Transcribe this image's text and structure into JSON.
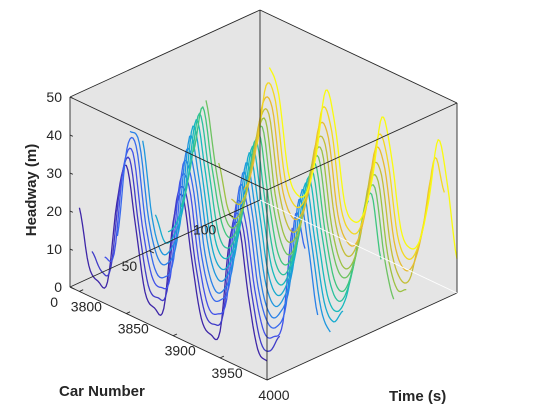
{
  "chart_data": {
    "type": "line",
    "projection": "3d",
    "title": "",
    "xlabel": "Time (s)",
    "ylabel": "Car Number",
    "zlabel": "Headway (m)",
    "xlim": [
      3790,
      4000
    ],
    "ylim": [
      0,
      120
    ],
    "zlim": [
      0,
      50
    ],
    "x_ticks": [
      3800,
      3850,
      3900,
      3950,
      4000
    ],
    "y_ticks": [
      0,
      50,
      100
    ],
    "z_ticks": [
      0,
      10,
      20,
      30,
      40,
      50
    ],
    "x_tick_labels": [
      "3800",
      "3850",
      "3900",
      "3950",
      "4000"
    ],
    "y_tick_labels": [
      "0",
      "50",
      "100"
    ],
    "z_tick_labels": [
      "0",
      "10",
      "20",
      "30",
      "40",
      "50"
    ],
    "grid": false,
    "background": "#e5e5e5",
    "colormap": "parula (car 0 = dark blue, car 120 = yellow)",
    "car_numbers": [
      0,
      8,
      16,
      24,
      32,
      40,
      48,
      56,
      64,
      72,
      80,
      88,
      96,
      104,
      112,
      120
    ],
    "time_s": [
      3800,
      3810,
      3820,
      3830,
      3840,
      3850,
      3860,
      3870,
      3880,
      3890,
      3900,
      3910,
      3920,
      3930,
      3940,
      3950,
      3960,
      3970,
      3980,
      3990,
      4000
    ],
    "wave_period_s": 40,
    "headway_min_m": 4,
    "headway_peak_m": 40,
    "series": [
      {
        "car": 0,
        "headway_m": [
          22,
          8,
          5,
          6,
          28,
          39,
          24,
          8,
          5,
          6,
          30,
          38,
          22,
          8,
          5,
          7,
          32,
          37,
          20,
          7,
          5
        ]
      },
      {
        "car": 8,
        "headway_m": [
          9,
          5,
          7,
          30,
          38,
          21,
          7,
          5,
          8,
          33,
          36,
          19,
          7,
          5,
          9,
          34,
          35,
          18,
          6,
          5,
          10
        ]
      },
      {
        "car": 16,
        "headway_m": [
          6,
          8,
          32,
          37,
          19,
          7,
          5,
          9,
          35,
          35,
          17,
          6,
          5,
          10,
          36,
          33,
          16,
          6,
          6,
          11,
          37
        ]
      },
      {
        "car": 24,
        "headway_m": [
          10,
          34,
          36,
          17,
          6,
          5,
          11,
          37,
          33,
          15,
          6,
          6,
          12,
          38,
          32,
          14,
          6,
          6,
          13,
          38,
          30
        ]
      },
      {
        "car": 32,
        "headway_m": [
          36,
          34,
          15,
          6,
          6,
          13,
          38,
          31,
          13,
          5,
          6,
          14,
          39,
          30,
          12,
          5,
          7,
          15,
          39,
          28,
          11
        ]
      },
      {
        "car": 40,
        "headway_m": [
          32,
          13,
          5,
          7,
          15,
          39,
          29,
          12,
          5,
          7,
          16,
          39,
          28,
          11,
          5,
          8,
          17,
          39,
          26,
          10,
          5
        ]
      },
      {
        "car": 48,
        "headway_m": [
          11,
          5,
          8,
          17,
          39,
          27,
          10,
          5,
          8,
          18,
          39,
          26,
          10,
          5,
          9,
          19,
          38,
          24,
          9,
          5,
          9
        ]
      },
      {
        "car": 56,
        "headway_m": [
          5,
          9,
          19,
          38,
          25,
          9,
          5,
          9,
          20,
          38,
          24,
          9,
          5,
          10,
          21,
          37,
          22,
          8,
          5,
          10,
          22
        ]
      },
      {
        "car": 64,
        "headway_m": [
          10,
          21,
          37,
          23,
          8,
          5,
          10,
          22,
          37,
          22,
          8,
          5,
          11,
          23,
          36,
          21,
          8,
          5,
          11,
          24,
          35
        ]
      },
      {
        "car": 72,
        "headway_m": [
          23,
          36,
          21,
          8,
          5,
          11,
          24,
          36,
          20,
          7,
          5,
          12,
          25,
          35,
          19,
          7,
          5,
          12,
          26,
          34,
          18
        ]
      },
      {
        "car": 80,
        "headway_m": [
          35,
          19,
          7,
          5,
          12,
          26,
          35,
          18,
          7,
          5,
          13,
          27,
          34,
          17,
          7,
          6,
          13,
          28,
          33,
          16,
          6
        ]
      },
      {
        "car": 88,
        "headway_m": [
          17,
          6,
          5,
          13,
          28,
          34,
          16,
          6,
          6,
          14,
          29,
          33,
          15,
          6,
          6,
          14,
          30,
          32,
          14,
          6,
          7
        ]
      },
      {
        "car": 96,
        "headway_m": [
          6,
          6,
          14,
          30,
          33,
          15,
          6,
          6,
          15,
          31,
          32,
          14,
          6,
          7,
          16,
          32,
          31,
          13,
          6,
          7,
          17
        ]
      },
      {
        "car": 104,
        "headway_m": [
          7,
          15,
          32,
          32,
          13,
          6,
          7,
          16,
          33,
          31,
          12,
          6,
          7,
          17,
          34,
          30,
          12,
          6,
          8,
          18,
          34
        ]
      },
      {
        "car": 112,
        "headway_m": [
          17,
          34,
          31,
          12,
          6,
          8,
          18,
          35,
          30,
          11,
          6,
          8,
          19,
          35,
          29,
          11,
          6,
          9,
          20,
          36,
          28
        ]
      },
      {
        "car": 120,
        "headway_m": [
          36,
          30,
          11,
          6,
          8,
          19,
          37,
          29,
          10,
          6,
          9,
          20,
          37,
          28,
          10,
          6,
          9,
          21,
          38,
          27,
          9
        ]
      }
    ]
  }
}
